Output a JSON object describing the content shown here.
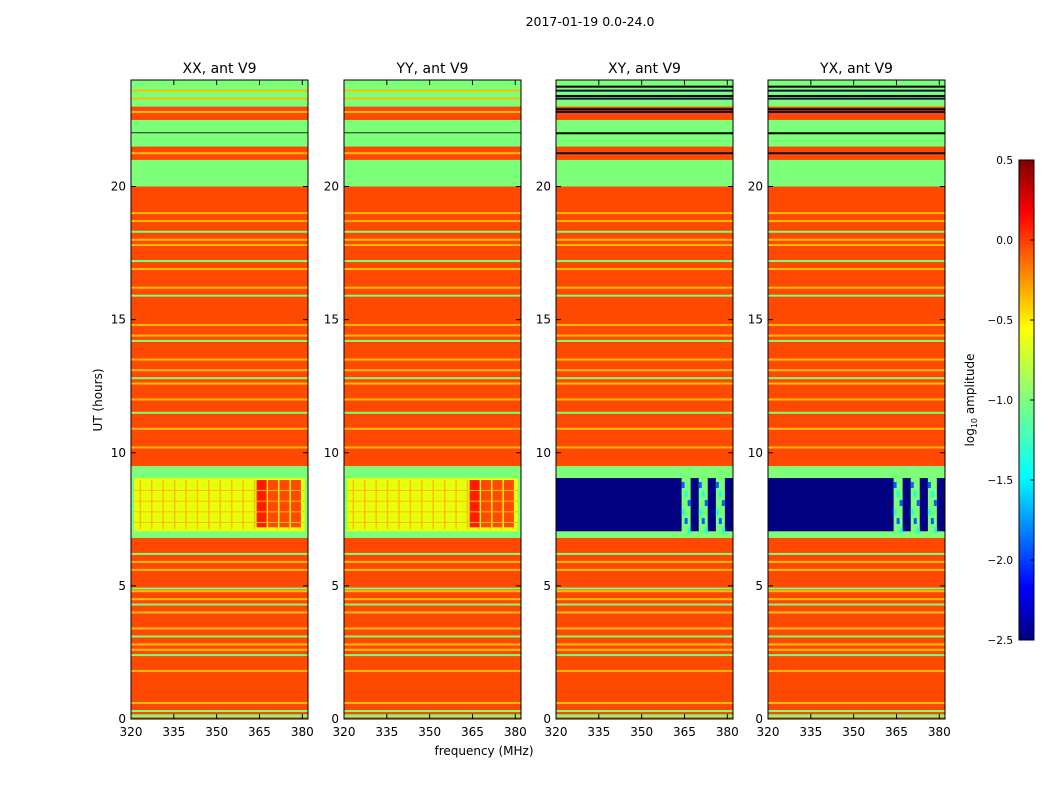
{
  "figure_title": "2017-01-19 0.0-24.0",
  "colors": {
    "bg_orange": "#ff4800",
    "green": "#7cff79",
    "yellow": "#e8ff0c",
    "gold": "#ffbd00",
    "navy": "#000080",
    "cyan": "#19ffe0",
    "blue": "#0060ff",
    "red": "#ff1a00",
    "dark": "#101040"
  },
  "chart_data": [
    {
      "type": "heatmap",
      "title": "XX, ant V9",
      "xlabel": "",
      "ylabel": "UT (hours)",
      "xlim": [
        320,
        382
      ],
      "ylim": [
        0,
        24
      ],
      "xticks": [
        "320",
        "335",
        "350",
        "365",
        "380"
      ],
      "xtick_values": [
        320,
        335,
        350,
        365,
        380
      ],
      "yticks": [
        "0",
        "5",
        "10",
        "15",
        "20"
      ],
      "ytick_values": [
        0,
        5,
        10,
        15,
        20
      ],
      "polarization": "XX",
      "antenna": "V9"
    },
    {
      "type": "heatmap",
      "title": "YY, ant V9",
      "xlabel": "frequency (MHz)",
      "ylabel": "",
      "xlim": [
        320,
        382
      ],
      "ylim": [
        0,
        24
      ],
      "xticks": [
        "320",
        "335",
        "350",
        "365",
        "380"
      ],
      "xtick_values": [
        320,
        335,
        350,
        365,
        380
      ],
      "yticks": [
        "0",
        "5",
        "10",
        "15",
        "20"
      ],
      "ytick_values": [
        0,
        5,
        10,
        15,
        20
      ],
      "polarization": "YY",
      "antenna": "V9"
    },
    {
      "type": "heatmap",
      "title": "XY, ant V9",
      "xlabel": "",
      "ylabel": "",
      "xlim": [
        320,
        382
      ],
      "ylim": [
        0,
        24
      ],
      "xticks": [
        "320",
        "335",
        "350",
        "365",
        "380"
      ],
      "xtick_values": [
        320,
        335,
        350,
        365,
        380
      ],
      "yticks": [
        "0",
        "5",
        "10",
        "15",
        "20"
      ],
      "ytick_values": [
        0,
        5,
        10,
        15,
        20
      ],
      "polarization": "XY",
      "antenna": "V9"
    },
    {
      "type": "heatmap",
      "title": "YX, ant V9",
      "xlabel": "",
      "ylabel": "",
      "xlim": [
        320,
        382
      ],
      "ylim": [
        0,
        24
      ],
      "xticks": [
        "320",
        "335",
        "350",
        "365",
        "380"
      ],
      "xtick_values": [
        320,
        335,
        350,
        365,
        380
      ],
      "yticks": [
        "0",
        "5",
        "10",
        "15",
        "20"
      ],
      "ytick_values": [
        0,
        5,
        10,
        15,
        20
      ],
      "polarization": "YX",
      "antenna": "V9"
    }
  ],
  "colorbar": {
    "label_prefix": "log",
    "label_sub": "10",
    "label_suffix": " amplitude",
    "range": [
      -2.5,
      0.5
    ],
    "ticks": [
      "0.5",
      "0.0",
      "−0.5",
      "−1.0",
      "−1.5",
      "−2.0",
      "−2.5"
    ],
    "tick_values": [
      0.5,
      0.0,
      -0.5,
      -1.0,
      -1.5,
      -2.0,
      -2.5
    ],
    "colormap": "jet"
  },
  "heatmap_features": {
    "background_log_amp": 0.0,
    "flagged_bands_hours": [
      [
        20.0,
        21.0
      ],
      [
        21.5,
        22.5
      ],
      [
        23.0,
        24.0
      ]
    ],
    "low_level_band_hours": [
      6.9,
      9.2
    ],
    "narrow_line_hours": [
      0.3,
      0.6,
      1.8,
      2.4,
      2.6,
      2.8,
      3.1,
      3.4,
      4.0,
      4.3,
      4.5,
      4.8,
      4.9,
      5.6,
      5.9,
      6.2,
      10.2,
      10.9,
      11.5,
      12.0,
      12.6,
      12.8,
      13.1,
      13.5,
      14.2,
      14.4,
      14.8,
      15.9,
      16.2,
      16.9,
      17.2,
      17.8,
      18.0,
      18.3,
      18.7,
      19.0
    ]
  }
}
